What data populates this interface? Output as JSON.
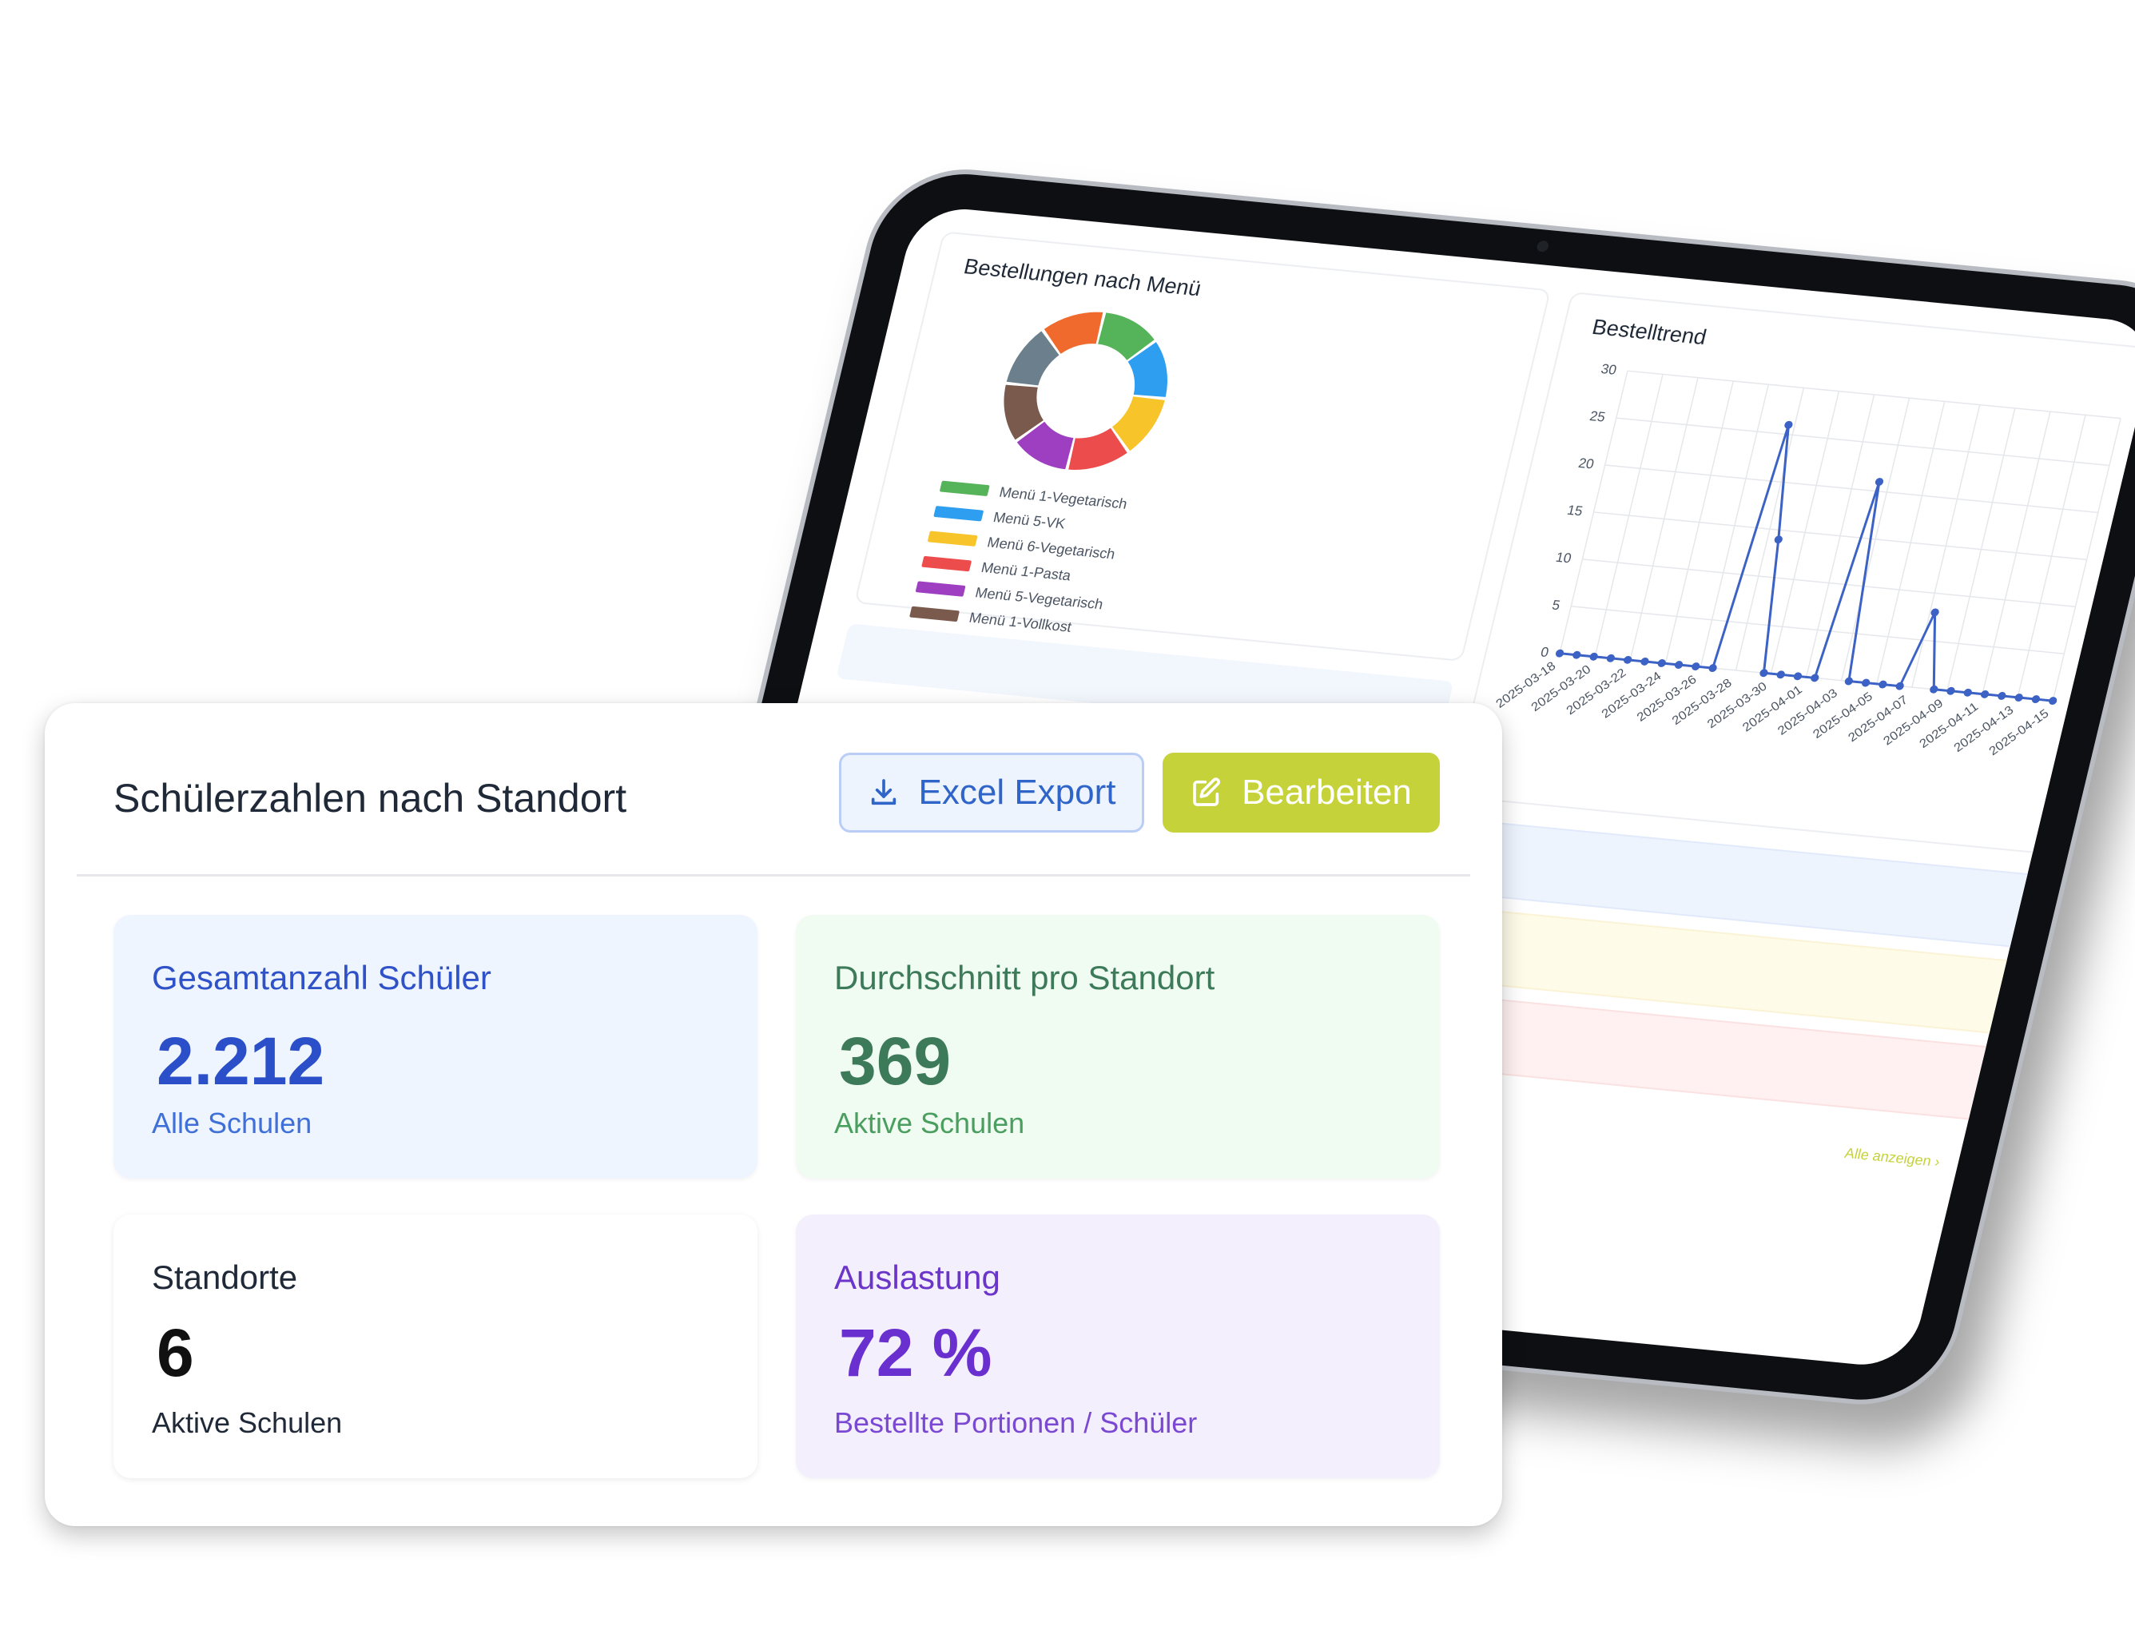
{
  "tablet": {
    "donut_title": "Bestellungen nach Menü",
    "trend_title": "Bestelltrend",
    "legend": [
      {
        "label": "Menü 1-Vegetarisch",
        "color": "#55b35a"
      },
      {
        "label": "Menü 5-VK",
        "color": "#2e9ef0"
      },
      {
        "label": "Menü 6-Vegetarisch",
        "color": "#f7c42a"
      },
      {
        "label": "Menü 1-Pasta",
        "color": "#ec4c4c"
      },
      {
        "label": "Menü 5-Vegetarisch",
        "color": "#9d3fc0"
      },
      {
        "label": "Menü 1-Vollkost",
        "color": "#7b5a4e"
      }
    ],
    "donut_colors": [
      "#55b35a",
      "#2e9ef0",
      "#f7c42a",
      "#ec4c4c",
      "#9d3fc0",
      "#7b5a4e",
      "#6c7f8c",
      "#f06a2e"
    ],
    "link_all": "Alle anzeigen ›",
    "chart_data": {
      "type": "line",
      "title": "Bestelltrend",
      "ylim": [
        0,
        30
      ],
      "yticks": [
        0,
        5,
        10,
        15,
        20,
        25,
        30
      ],
      "xtick_labels": [
        "2025-03-18",
        "2025-03-20",
        "2025-03-22",
        "2025-03-24",
        "2025-03-26",
        "2025-03-28",
        "2025-03-30",
        "2025-04-01",
        "2025-04-03",
        "2025-04-05",
        "2025-04-07",
        "2025-04-09",
        "2025-04-11",
        "2025-04-13",
        "2025-04-15"
      ],
      "values": [
        0,
        0,
        0,
        0,
        0,
        0,
        0,
        0,
        0,
        0,
        26,
        14,
        0,
        0,
        0,
        0,
        21,
        0,
        0,
        0,
        0,
        8,
        0,
        0,
        0,
        0,
        0,
        0,
        0,
        0
      ]
    }
  },
  "card": {
    "title": "Schülerzahlen nach Standort",
    "export_label": "Excel Export",
    "edit_label": "Bearbeiten",
    "stats": {
      "total": {
        "label": "Gesamtanzahl Schüler",
        "value": "2.212",
        "sub": "Alle Schulen"
      },
      "avg": {
        "label": "Durchschnitt pro Standort",
        "value": "369",
        "sub": "Aktive Schulen"
      },
      "locations": {
        "label": "Standorte",
        "value": "6",
        "sub": "Aktive Schulen"
      },
      "load": {
        "label": "Auslastung",
        "value": "72 %",
        "sub": "Bestellte Portionen / Schüler"
      }
    }
  }
}
